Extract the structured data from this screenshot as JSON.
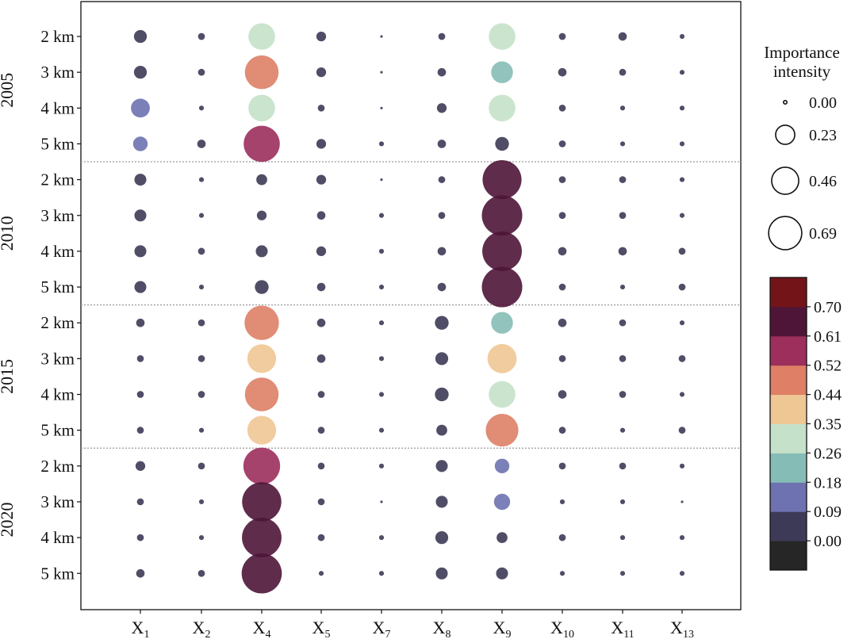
{
  "chart_data": {
    "type": "bubble-matrix",
    "title": "",
    "x_labels": [
      {
        "base": "X",
        "sub": "1"
      },
      {
        "base": "X",
        "sub": "2"
      },
      {
        "base": "X",
        "sub": "4"
      },
      {
        "base": "X",
        "sub": "5"
      },
      {
        "base": "X",
        "sub": "7"
      },
      {
        "base": "X",
        "sub": "8"
      },
      {
        "base": "X",
        "sub": "9"
      },
      {
        "base": "X",
        "sub": "10"
      },
      {
        "base": "X",
        "sub": "11"
      },
      {
        "base": "X",
        "sub": "13"
      }
    ],
    "groups": [
      "2005",
      "2010",
      "2015",
      "2020"
    ],
    "scales": [
      "2 km",
      "3 km",
      "4 km",
      "5 km"
    ],
    "values": [
      [
        0.07,
        0.02,
        0.3,
        0.04,
        0.0,
        0.02,
        0.3,
        0.02,
        0.03,
        0.01
      ],
      [
        0.07,
        0.02,
        0.48,
        0.04,
        0.0,
        0.03,
        0.2,
        0.03,
        0.02,
        0.01
      ],
      [
        0.15,
        0.01,
        0.3,
        0.02,
        0.0,
        0.04,
        0.3,
        0.02,
        0.01,
        0.01
      ],
      [
        0.09,
        0.03,
        0.55,
        0.04,
        0.01,
        0.03,
        0.08,
        0.02,
        0.01,
        0.01
      ],
      [
        0.06,
        0.01,
        0.05,
        0.04,
        0.0,
        0.02,
        0.64,
        0.02,
        0.02,
        0.01
      ],
      [
        0.06,
        0.01,
        0.04,
        0.03,
        0.01,
        0.02,
        0.69,
        0.02,
        0.02,
        0.01
      ],
      [
        0.06,
        0.02,
        0.06,
        0.04,
        0.01,
        0.03,
        0.66,
        0.03,
        0.03,
        0.02
      ],
      [
        0.06,
        0.01,
        0.08,
        0.03,
        0.01,
        0.03,
        0.69,
        0.02,
        0.01,
        0.02
      ],
      [
        0.03,
        0.02,
        0.5,
        0.03,
        0.01,
        0.08,
        0.2,
        0.03,
        0.02,
        0.01
      ],
      [
        0.02,
        0.02,
        0.35,
        0.03,
        0.01,
        0.07,
        0.36,
        0.02,
        0.02,
        0.02
      ],
      [
        0.02,
        0.02,
        0.48,
        0.02,
        0.01,
        0.08,
        0.3,
        0.03,
        0.02,
        0.01
      ],
      [
        0.02,
        0.01,
        0.35,
        0.02,
        0.01,
        0.05,
        0.45,
        0.02,
        0.01,
        0.02
      ],
      [
        0.04,
        0.02,
        0.57,
        0.02,
        0.01,
        0.06,
        0.09,
        0.02,
        0.02,
        0.01
      ],
      [
        0.02,
        0.01,
        0.65,
        0.02,
        0.0,
        0.06,
        0.11,
        0.01,
        0.01,
        0.0
      ],
      [
        0.02,
        0.01,
        0.66,
        0.02,
        0.01,
        0.07,
        0.05,
        0.02,
        0.01,
        0.01
      ],
      [
        0.03,
        0.02,
        0.68,
        0.01,
        0.01,
        0.06,
        0.06,
        0.01,
        0.01,
        0.01
      ]
    ],
    "size_legend": {
      "title_lines": [
        "Importance",
        "intensity"
      ],
      "values": [
        0.0,
        0.23,
        0.46,
        0.69
      ],
      "labels": [
        "0.00",
        "0.23",
        "0.46",
        "0.69"
      ]
    },
    "colorbar": {
      "bins": [
        "#262626",
        "#3d3a57",
        "#6e72b0",
        "#86bcb6",
        "#c5e1c9",
        "#efc795",
        "#de7f66",
        "#9c2f5c",
        "#4e1538",
        "#731419"
      ],
      "edges": [
        0.0,
        0.09,
        0.18,
        0.26,
        0.35,
        0.44,
        0.52,
        0.61,
        0.7
      ],
      "tick_labels": [
        "0.00",
        "0.09",
        "0.18",
        "0.26",
        "0.35",
        "0.44",
        "0.52",
        "0.61",
        "0.70"
      ]
    },
    "colors": {
      "axis": "#111111",
      "separator": "#9a9a9a"
    }
  }
}
